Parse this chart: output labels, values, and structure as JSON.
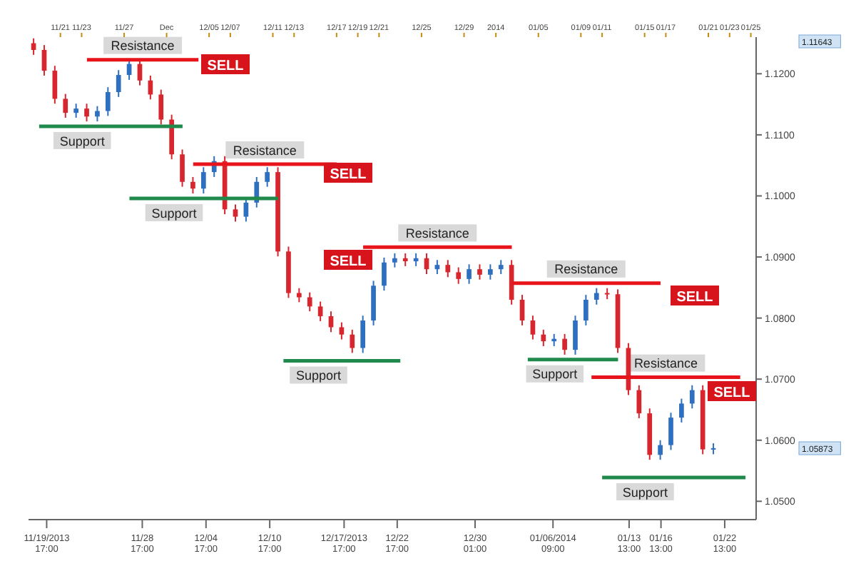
{
  "chart_data": {
    "type": "candlestick",
    "x": [
      "2013-11-18T12:00",
      "2013-11-19T12:00",
      "2013-11-20T12:00",
      "2013-11-21T12:00",
      "2013-11-22T12:00",
      "2013-11-23T12:00",
      "2013-11-24T12:00",
      "2013-11-25T12:00",
      "2013-11-26T12:00",
      "2013-11-27T12:00",
      "2013-11-28T12:00",
      "2013-11-29T12:00",
      "2013-11-30T12:00",
      "2013-12-01T12:00",
      "2013-12-02T12:00",
      "2013-12-03T12:00",
      "2013-12-04T12:00",
      "2013-12-05T12:00",
      "2013-12-06T12:00",
      "2013-12-07T12:00",
      "2013-12-08T12:00",
      "2013-12-09T12:00",
      "2013-12-10T12:00",
      "2013-12-11T12:00",
      "2013-12-12T12:00",
      "2013-12-13T12:00",
      "2013-12-14T12:00",
      "2013-12-15T12:00",
      "2013-12-16T12:00",
      "2013-12-17T12:00",
      "2013-12-18T12:00",
      "2013-12-19T12:00",
      "2013-12-20T12:00",
      "2013-12-21T12:00",
      "2013-12-22T12:00",
      "2013-12-23T12:00",
      "2013-12-24T12:00",
      "2013-12-25T12:00",
      "2013-12-26T12:00",
      "2013-12-27T12:00",
      "2013-12-28T12:00",
      "2013-12-29T12:00",
      "2013-12-30T12:00",
      "2013-12-31T12:00",
      "2014-01-01T12:00",
      "2014-01-02T12:00",
      "2014-01-03T12:00",
      "2014-01-04T12:00",
      "2014-01-05T12:00",
      "2014-01-06T12:00",
      "2014-01-07T12:00",
      "2014-01-08T12:00",
      "2014-01-09T12:00",
      "2014-01-10T12:00",
      "2014-01-11T12:00",
      "2014-01-12T12:00",
      "2014-01-13T12:00",
      "2014-01-14T12:00",
      "2014-01-15T12:00",
      "2014-01-16T12:00",
      "2014-01-17T12:00",
      "2014-01-18T12:00",
      "2014-01-19T12:00",
      "2014-01-20T12:00",
      "2014-01-21T12:00"
    ],
    "ohlc": [
      [
        1.125,
        1.1258,
        1.1231,
        1.1239
      ],
      [
        1.1239,
        1.1247,
        1.1197,
        1.1205
      ],
      [
        1.1205,
        1.1213,
        1.1151,
        1.1159
      ],
      [
        1.1159,
        1.1167,
        1.1128,
        1.1136
      ],
      [
        1.1136,
        1.1151,
        1.1128,
        1.1143
      ],
      [
        1.1143,
        1.1151,
        1.1122,
        1.113
      ],
      [
        1.113,
        1.1147,
        1.1122,
        1.1139
      ],
      [
        1.1139,
        1.1178,
        1.1131,
        1.117
      ],
      [
        1.117,
        1.1206,
        1.1162,
        1.1198
      ],
      [
        1.1198,
        1.1224,
        1.119,
        1.1216
      ],
      [
        1.1216,
        1.1224,
        1.1181,
        1.1189
      ],
      [
        1.1189,
        1.1197,
        1.1158,
        1.1166
      ],
      [
        1.1166,
        1.1174,
        1.1117,
        1.1125
      ],
      [
        1.1125,
        1.1133,
        1.106,
        1.1068
      ],
      [
        1.1068,
        1.1076,
        1.1015,
        1.1023
      ],
      [
        1.1023,
        1.1031,
        1.1004,
        1.1012
      ],
      [
        1.1012,
        1.1047,
        1.1004,
        1.1039
      ],
      [
        1.1039,
        1.1065,
        1.1031,
        1.1057
      ],
      [
        1.1057,
        1.1065,
        1.097,
        1.0978
      ],
      [
        1.0978,
        1.0986,
        1.0958,
        1.0966
      ],
      [
        1.0966,
        1.0997,
        1.0958,
        1.0989
      ],
      [
        1.0989,
        1.1031,
        1.0981,
        1.1023
      ],
      [
        1.1023,
        1.1047,
        1.1015,
        1.1039
      ],
      [
        1.1039,
        1.1047,
        1.0901,
        1.0909
      ],
      [
        1.0909,
        1.0917,
        1.0833,
        1.0841
      ],
      [
        1.0841,
        1.0849,
        1.0826,
        1.0834
      ],
      [
        1.0834,
        1.0842,
        1.0811,
        1.0819
      ],
      [
        1.0819,
        1.0827,
        1.0795,
        1.0803
      ],
      [
        1.0803,
        1.0811,
        1.0777,
        1.0785
      ],
      [
        1.0785,
        1.0793,
        1.0765,
        1.0773
      ],
      [
        1.0773,
        1.0781,
        1.0743,
        1.0751
      ],
      [
        1.0751,
        1.0804,
        1.0743,
        1.0796
      ],
      [
        1.0796,
        1.0861,
        1.0788,
        1.0853
      ],
      [
        1.0853,
        1.0899,
        1.0845,
        1.0891
      ],
      [
        1.0891,
        1.0906,
        1.0883,
        1.0898
      ],
      [
        1.0898,
        1.0906,
        1.0885,
        1.0893
      ],
      [
        1.0893,
        1.0906,
        1.0885,
        1.0898
      ],
      [
        1.0898,
        1.0906,
        1.0872,
        1.088
      ],
      [
        1.088,
        1.0895,
        1.0872,
        1.0887
      ],
      [
        1.0887,
        1.0895,
        1.0867,
        1.0875
      ],
      [
        1.0875,
        1.0883,
        1.0856,
        1.0864
      ],
      [
        1.0864,
        1.0888,
        1.0856,
        1.088
      ],
      [
        1.088,
        1.0888,
        1.0863,
        1.0871
      ],
      [
        1.0871,
        1.0888,
        1.0863,
        1.088
      ],
      [
        1.088,
        1.0895,
        1.0872,
        1.0887
      ],
      [
        1.0887,
        1.0895,
        1.0822,
        1.083
      ],
      [
        1.083,
        1.0838,
        1.0788,
        1.0796
      ],
      [
        1.0796,
        1.0804,
        1.0765,
        1.0773
      ],
      [
        1.0773,
        1.0781,
        1.0754,
        1.0762
      ],
      [
        1.0762,
        1.0774,
        1.0754,
        1.0766
      ],
      [
        1.0766,
        1.0774,
        1.074,
        1.0748
      ],
      [
        1.0748,
        1.0804,
        1.074,
        1.0796
      ],
      [
        1.0796,
        1.0838,
        1.0788,
        1.083
      ],
      [
        1.083,
        1.0849,
        1.0822,
        1.0841
      ],
      [
        1.0841,
        1.0849,
        1.0831,
        1.0839
      ],
      [
        1.0839,
        1.0847,
        1.0743,
        1.0751
      ],
      [
        1.0751,
        1.0759,
        1.0674,
        1.0682
      ],
      [
        1.0682,
        1.069,
        1.0636,
        1.0644
      ],
      [
        1.0644,
        1.0652,
        1.0568,
        1.0576
      ],
      [
        1.0576,
        1.06,
        1.0568,
        1.0592
      ],
      [
        1.0592,
        1.0645,
        1.0584,
        1.0637
      ],
      [
        1.0637,
        1.0668,
        1.0629,
        1.066
      ],
      [
        1.066,
        1.069,
        1.0652,
        1.0682
      ],
      [
        1.0682,
        1.069,
        1.0577,
        1.0585
      ],
      [
        1.0585,
        1.0595,
        1.0577,
        1.0587
      ]
    ],
    "colors": [
      "#d8262e",
      "#d8262e",
      "#d8262e",
      "#d8262e",
      "#2f6fc0",
      "#d8262e",
      "#2f6fc0",
      "#2f6fc0",
      "#2f6fc0",
      "#2f6fc0",
      "#d8262e",
      "#d8262e",
      "#d8262e",
      "#d8262e",
      "#d8262e",
      "#d8262e",
      "#2f6fc0",
      "#2f6fc0",
      "#d8262e",
      "#d8262e",
      "#2f6fc0",
      "#2f6fc0",
      "#2f6fc0",
      "#d8262e",
      "#d8262e",
      "#d8262e",
      "#d8262e",
      "#d8262e",
      "#d8262e",
      "#d8262e",
      "#d8262e",
      "#2f6fc0",
      "#2f6fc0",
      "#2f6fc0",
      "#2f6fc0",
      "#d8262e",
      "#2f6fc0",
      "#d8262e",
      "#2f6fc0",
      "#d8262e",
      "#d8262e",
      "#2f6fc0",
      "#d8262e",
      "#2f6fc0",
      "#2f6fc0",
      "#d8262e",
      "#d8262e",
      "#d8262e",
      "#d8262e",
      "#2f6fc0",
      "#d8262e",
      "#2f6fc0",
      "#2f6fc0",
      "#2f6fc0",
      "#d8262e",
      "#d8262e",
      "#d8262e",
      "#d8262e",
      "#d8262e",
      "#2f6fc0",
      "#2f6fc0",
      "#2f6fc0",
      "#2f6fc0",
      "#d8262e",
      "#2f6fc0"
    ],
    "series": [
      {
        "type": "line",
        "name": "Resistance",
        "color": "#e8141b",
        "x": [
          "2013-11-23T12:00",
          "2013-12-04T00:00"
        ],
        "values": [
          1.1223,
          1.1223
        ]
      },
      {
        "type": "line",
        "name": "Support",
        "color": "#1f8a4c",
        "x": [
          "2013-11-19T00:00",
          "2013-12-02T12:00"
        ],
        "values": [
          1.1114,
          1.1114
        ]
      },
      {
        "type": "line",
        "name": "Resistance",
        "color": "#e8141b",
        "x": [
          "2013-12-03T12:00",
          "2013-12-17T00:00"
        ],
        "values": [
          1.1052,
          1.1052
        ]
      },
      {
        "type": "line",
        "name": "Support",
        "color": "#1f8a4c",
        "x": [
          "2013-11-27T12:00",
          "2013-12-11T12:00"
        ],
        "values": [
          1.0996,
          1.0996
        ]
      },
      {
        "type": "line",
        "name": "Resistance",
        "color": "#e8141b",
        "x": [
          "2013-12-19T12:00",
          "2014-01-02T12:00"
        ],
        "values": [
          1.0916,
          1.0916
        ]
      },
      {
        "type": "line",
        "name": "Support",
        "color": "#1f8a4c",
        "x": [
          "2013-12-12T00:00",
          "2013-12-23T00:00"
        ],
        "values": [
          1.073,
          1.073
        ]
      },
      {
        "type": "line",
        "name": "Resistance",
        "color": "#e8141b",
        "x": [
          "2014-01-02T12:00",
          "2014-01-16T12:00"
        ],
        "values": [
          1.0857,
          1.0857
        ]
      },
      {
        "type": "line",
        "name": "Support",
        "color": "#1f8a4c",
        "x": [
          "2014-01-04T00:00",
          "2014-01-12T12:00"
        ],
        "values": [
          1.0732,
          1.0732
        ]
      },
      {
        "type": "line",
        "name": "Resistance",
        "color": "#e8141b",
        "x": [
          "2014-01-10T00:00",
          "2014-01-24T00:00"
        ],
        "values": [
          1.0703,
          1.0703
        ]
      },
      {
        "type": "line",
        "name": "Support",
        "color": "#1f8a4c",
        "x": [
          "2014-01-11T00:00",
          "2014-01-24T12:00"
        ],
        "values": [
          1.0539,
          1.0539
        ]
      }
    ],
    "ylim": [
      1.047,
      1.126
    ],
    "yticks": [
      {
        "value": 1.05,
        "label": "1.0500"
      },
      {
        "value": 1.06,
        "label": "1.0600"
      },
      {
        "value": 1.07,
        "label": "1.0700"
      },
      {
        "value": 1.08,
        "label": "1.0800"
      },
      {
        "value": 1.09,
        "label": "1.0900"
      },
      {
        "value": 1.1,
        "label": "1.1000"
      },
      {
        "value": 1.11,
        "label": "1.1100"
      },
      {
        "value": 1.12,
        "label": "1.1200"
      }
    ],
    "xlim": [
      "2013-11-18T00:00",
      "2014-01-25T12:00"
    ],
    "xticks": [
      {
        "value": "2013-11-19T17:00",
        "label": "11/19/2013 17:00"
      },
      {
        "value": "2013-11-28T17:00",
        "label": "11/28 17:00"
      },
      {
        "value": "2013-12-04T17:00",
        "label": "12/04 17:00"
      },
      {
        "value": "2013-12-10T17:00",
        "label": "12/10 17:00"
      },
      {
        "value": "2013-12-17T17:00",
        "label": "12/17/2013 17:00"
      },
      {
        "value": "2013-12-22T17:00",
        "label": "12/22 17:00"
      },
      {
        "value": "2013-12-30T01:00",
        "label": "12/30 01:00"
      },
      {
        "value": "2014-01-06T09:00",
        "label": "01/06/2014 09:00"
      },
      {
        "value": "2014-01-13T13:00",
        "label": "01/13 13:00"
      },
      {
        "value": "2014-01-16T13:00",
        "label": "01/16 13:00"
      },
      {
        "value": "2014-01-22T13:00",
        "label": "01/22 13:00"
      }
    ],
    "x2lim": [
      "2013-11-18T00:00",
      "2014-01-25T12:00"
    ],
    "x2ticks": [
      {
        "value": "2013-11-21",
        "label": "11/21"
      },
      {
        "value": "2013-11-23",
        "label": "11/23"
      },
      {
        "value": "2013-11-27",
        "label": "11/27"
      },
      {
        "value": "2013-12-01",
        "label": "Dec"
      },
      {
        "value": "2013-12-05",
        "label": "12/05"
      },
      {
        "value": "2013-12-07",
        "label": "12/07"
      },
      {
        "value": "2013-12-11",
        "label": "12/11"
      },
      {
        "value": "2013-12-13",
        "label": "12/13"
      },
      {
        "value": "2013-12-17",
        "label": "12/17"
      },
      {
        "value": "2013-12-19",
        "label": "12/19"
      },
      {
        "value": "2013-12-21",
        "label": "12/21"
      },
      {
        "value": "2013-12-25",
        "label": "12/25"
      },
      {
        "value": "2013-12-29",
        "label": "12/29"
      },
      {
        "value": "2014-01-01",
        "label": "2014"
      },
      {
        "value": "2014-01-05",
        "label": "01/05"
      },
      {
        "value": "2014-01-09",
        "label": "01/09"
      },
      {
        "value": "2014-01-11",
        "label": "01/11"
      },
      {
        "value": "2014-01-15",
        "label": "01/15"
      },
      {
        "value": "2014-01-17",
        "label": "01/17"
      },
      {
        "value": "2014-01-21",
        "label": "01/21"
      },
      {
        "value": "2014-01-23",
        "label": "01/23"
      },
      {
        "value": "2014-01-25",
        "label": "01/25"
      }
    ],
    "annotations": [
      "SELL",
      "SELL",
      "SELL",
      "SELL",
      "SELL",
      "1.11643",
      "1.05873"
    ]
  }
}
